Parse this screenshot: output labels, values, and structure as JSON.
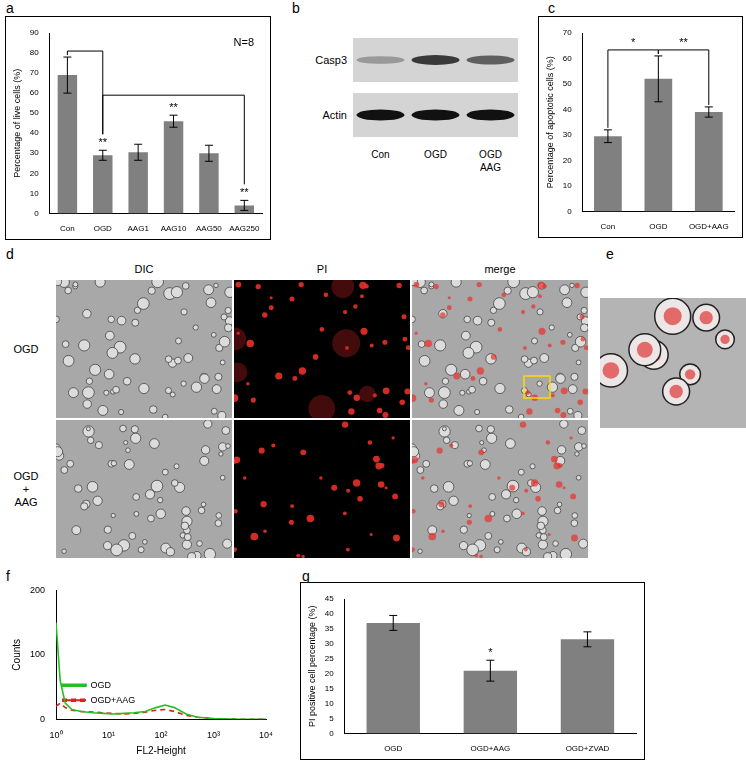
{
  "chart_data": [
    {
      "panel": "a",
      "type": "bar",
      "categories": [
        "Con",
        "OGD",
        "AAG1",
        "AAG10",
        "AAG50",
        "AAG250"
      ],
      "values": [
        69,
        29,
        30.5,
        46,
        30,
        4
      ],
      "errors": [
        9,
        2.5,
        4,
        3,
        4,
        2.5
      ],
      "color": "#808080",
      "y_label": "Percentage of live cells (%)",
      "ylim": [
        0,
        90
      ],
      "yticks": [
        0,
        10,
        20,
        30,
        40,
        50,
        60,
        70,
        80,
        90
      ],
      "grid": false,
      "annotations": [
        {
          "text": "N=8"
        },
        {
          "text": "**",
          "category": "OGD"
        },
        {
          "text": "**",
          "category": "AAG10"
        },
        {
          "text": "**",
          "category": "AAG250"
        }
      ],
      "brackets": [
        {
          "from": "Con",
          "to": "OGD"
        },
        {
          "from": "OGD",
          "to": "AAG250"
        }
      ]
    },
    {
      "panel": "c",
      "type": "bar",
      "categories": [
        "Con",
        "OGD",
        "OGD+AAG"
      ],
      "values": [
        29.5,
        52,
        39
      ],
      "errors": [
        2.5,
        9,
        2
      ],
      "color": "#808080",
      "y_label": "Percentage of apoptotic cells (%)",
      "ylim": [
        0,
        70
      ],
      "yticks": [
        0,
        10,
        20,
        30,
        40,
        50,
        60,
        70
      ],
      "grid": false,
      "brackets": [
        {
          "from": "Con",
          "to": "OGD",
          "text": "*"
        },
        {
          "from": "OGD",
          "to": "OGD+AAG",
          "text": "**"
        }
      ]
    },
    {
      "panel": "f",
      "type": "line",
      "x": [
        1,
        1.2,
        1.5,
        2,
        3,
        5,
        8,
        12,
        20,
        30,
        50,
        80,
        120,
        180,
        300,
        500,
        1000,
        3000,
        10000
      ],
      "series": [
        {
          "name": "OGD",
          "color": "#22c022",
          "line_style": "solid",
          "values": [
            150,
            60,
            25,
            15,
            12,
            10,
            9,
            8,
            9,
            10,
            12,
            18,
            22,
            18,
            8,
            3,
            1,
            0,
            0
          ]
        },
        {
          "name": "OGD+AAG",
          "color": "#e02020",
          "line_style": "dashed",
          "values": [
            20,
            25,
            18,
            14,
            12,
            11,
            10,
            9,
            8,
            9,
            11,
            14,
            15,
            12,
            6,
            3,
            1,
            0,
            0
          ]
        }
      ],
      "x_label": "FL2-Height",
      "y_label": "Counts",
      "log": "x",
      "xlim": [
        1,
        10000
      ],
      "xticks": [
        {
          "value": 1,
          "label": "10⁰"
        },
        {
          "value": 10,
          "label": "10¹"
        },
        {
          "value": 100,
          "label": "10²"
        },
        {
          "value": 1000,
          "label": "10³"
        },
        {
          "value": 10000,
          "label": "10⁴"
        }
      ],
      "ylim": [
        0,
        200
      ],
      "yticks": [
        0,
        100,
        200
      ],
      "grid": false,
      "legend": "upper right"
    },
    {
      "panel": "g",
      "type": "bar",
      "categories": [
        "OGD",
        "OGD+AAG",
        "OGD+ZVAD"
      ],
      "values": [
        37,
        21,
        31.5
      ],
      "errors": [
        2.5,
        3.5,
        2.5
      ],
      "color": "#808080",
      "y_label": "PI positive cell percentage (%)",
      "ylim": [
        0,
        45
      ],
      "yticks": [
        0,
        5,
        10,
        15,
        20,
        25,
        30,
        35,
        40,
        45
      ],
      "grid": false,
      "annotations": [
        {
          "text": "*",
          "category": "OGD+AAG"
        }
      ]
    }
  ],
  "blot": {
    "panel": "b",
    "rows": [
      {
        "label": "Casp3",
        "intensities": [
          0.3,
          0.8,
          0.6
        ]
      },
      {
        "label": "Actin",
        "intensities": [
          1,
          1,
          1
        ]
      }
    ],
    "lanes": [
      [
        "Con"
      ],
      [
        "OGD"
      ],
      [
        "OGD",
        "AAG"
      ]
    ]
  },
  "micrographs": {
    "panel": "d",
    "columns": [
      "DIC",
      "PI",
      "merge"
    ],
    "rows": [
      [
        "OGD"
      ],
      [
        "OGD",
        "+",
        "AAG"
      ]
    ]
  },
  "zoom": {
    "panel": "e"
  }
}
